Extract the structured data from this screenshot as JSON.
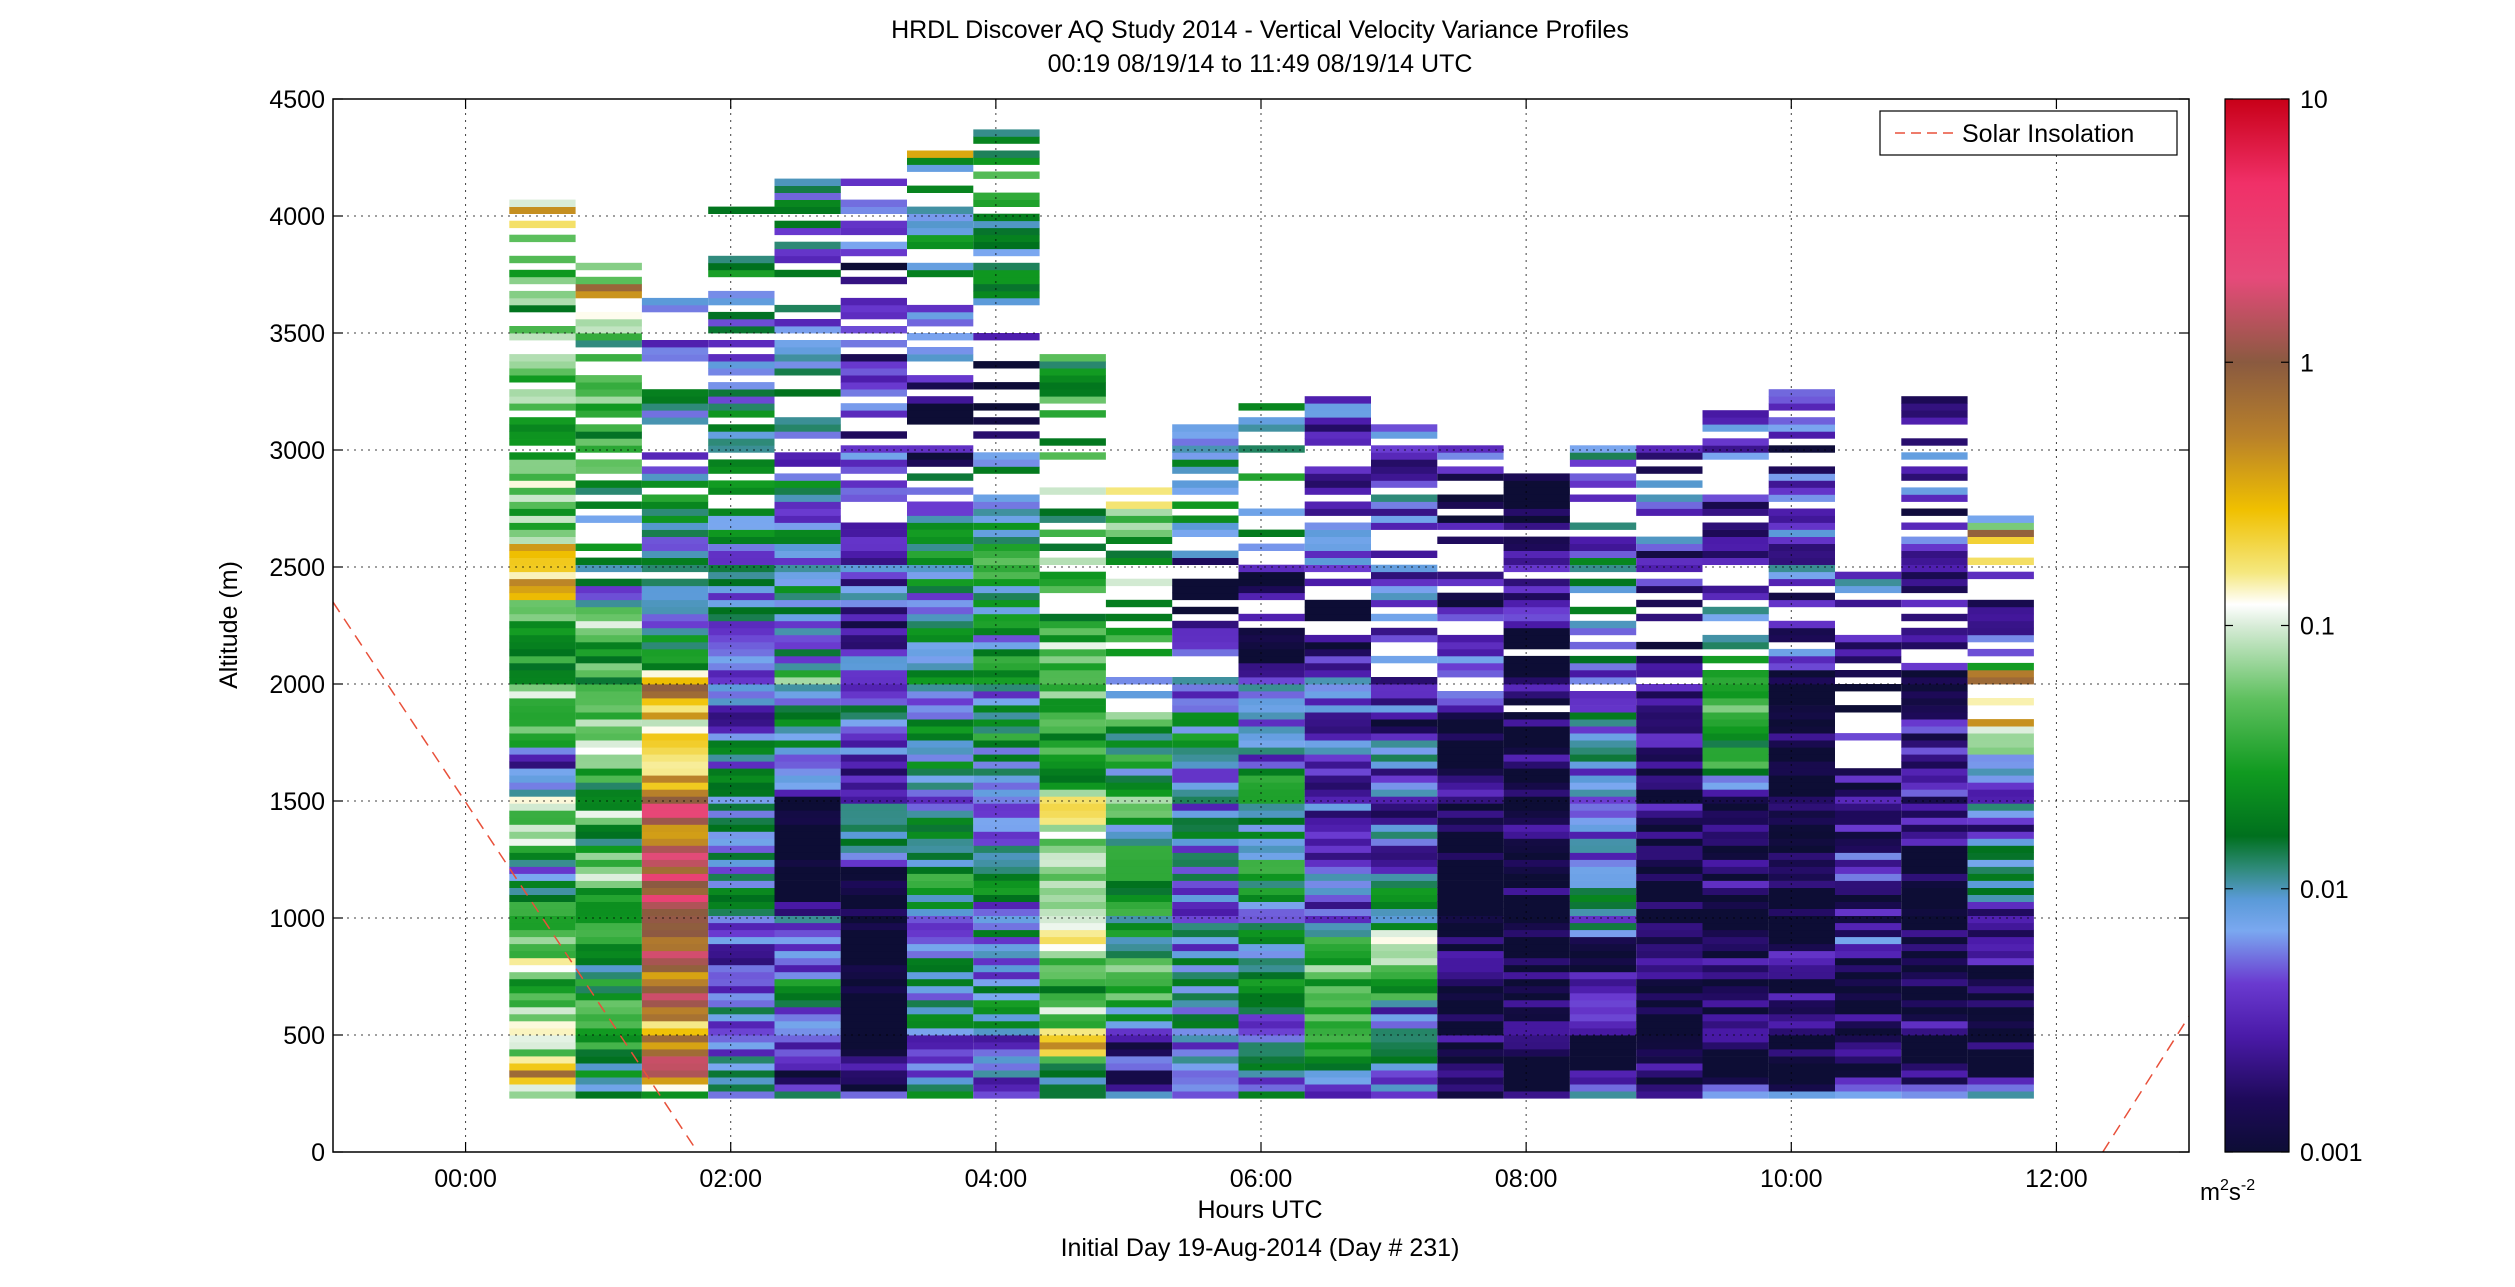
{
  "chart_data": {
    "type": "heatmap",
    "title": "HRDL Discover AQ Study 2014 - Vertical Velocity Variance Profiles",
    "subtitle": "00:19 08/19/14 to 11:49 08/19/14  UTC",
    "xlabel": "Hours UTC",
    "xlabel2": "Initial Day 19-Aug-2014 (Day # 231)",
    "ylabel": "Altitude (m)",
    "xlim": [
      -1.0,
      13.0
    ],
    "ylim": [
      0,
      4500
    ],
    "x_ticks": [
      0,
      2,
      4,
      6,
      8,
      10,
      12
    ],
    "x_tick_labels": [
      "00:00",
      "02:00",
      "04:00",
      "06:00",
      "08:00",
      "10:00",
      "12:00"
    ],
    "y_ticks": [
      0,
      500,
      1000,
      1500,
      2000,
      2500,
      3000,
      3500,
      4000,
      4500
    ],
    "y_tick_labels": [
      "0",
      "500",
      "1000",
      "1500",
      "2000",
      "2500",
      "3000",
      "3500",
      "4000",
      "4500"
    ],
    "grid": true,
    "legend": {
      "position": "top-right",
      "entries": [
        "Solar Insolation"
      ]
    },
    "colorbar": {
      "scale": "log",
      "min": 0.001,
      "max": 10,
      "ticks": [
        0.001,
        0.01,
        0.1,
        1,
        10
      ],
      "tick_labels": [
        "0.001",
        "0.01",
        "0.1",
        "1",
        "10"
      ],
      "units_base": "m",
      "units_exp1": "2",
      "units_mid": "s",
      "units_exp2": "-2",
      "colors": [
        [
          0.0,
          "#0d0d35"
        ],
        [
          0.05,
          "#1e0a5a"
        ],
        [
          0.11,
          "#4a1aa8"
        ],
        [
          0.16,
          "#6a3ad0"
        ],
        [
          0.21,
          "#7aa8f0"
        ],
        [
          0.24,
          "#5a9ad8"
        ],
        [
          0.27,
          "#2e8a78"
        ],
        [
          0.3,
          "#00701e"
        ],
        [
          0.36,
          "#109a20"
        ],
        [
          0.43,
          "#5ec05e"
        ],
        [
          0.5,
          "#d8ecd8"
        ],
        [
          0.52,
          "#ffffff"
        ],
        [
          0.55,
          "#f5e880"
        ],
        [
          0.61,
          "#f0c000"
        ],
        [
          0.68,
          "#b8802a"
        ],
        [
          0.75,
          "#8a5a40"
        ],
        [
          0.83,
          "#e64a7a"
        ],
        [
          0.92,
          "#f03068"
        ],
        [
          1.0,
          "#c80018"
        ]
      ]
    },
    "solar_insolation": {
      "style": "dashed",
      "color": "#e8503a",
      "segments": [
        {
          "x": [
            -1.0,
            1.75
          ],
          "y": [
            2350,
            0
          ]
        },
        {
          "x": [
            12.35,
            13.0
          ],
          "y": [
            0,
            580
          ]
        }
      ]
    },
    "profiles": [
      {
        "time": 0.58,
        "base": 230,
        "top": 4070,
        "median": 0.05,
        "features": [
          [
            250,
            350,
            0.3
          ],
          [
            1000,
            1200,
            0.01
          ],
          [
            1500,
            1700,
            0.003
          ],
          [
            2350,
            2600,
            0.3
          ],
          [
            3950,
            4020,
            1.0
          ]
        ]
      },
      {
        "time": 1.08,
        "base": 230,
        "top": 3810,
        "median": 0.03,
        "features": [
          [
            250,
            400,
            0.01
          ],
          [
            2300,
            2700,
            0.01
          ],
          [
            3600,
            3700,
            0.3
          ]
        ]
      },
      {
        "time": 1.58,
        "base": 230,
        "top": 3780,
        "median": 0.01,
        "features": [
          [
            250,
            650,
            0.6
          ],
          [
            650,
            900,
            1.3
          ],
          [
            900,
            1050,
            4.0
          ],
          [
            1050,
            1500,
            1.3
          ],
          [
            1500,
            2050,
            0.35
          ],
          [
            3250,
            3500,
            0.002
          ]
        ]
      },
      {
        "time": 2.08,
        "base": 230,
        "top": 4070,
        "median": 0.008,
        "features": [
          [
            250,
            900,
            0.005
          ],
          [
            1600,
            2200,
            0.006
          ]
        ]
      },
      {
        "time": 2.58,
        "base": 230,
        "top": 4200,
        "median": 0.01,
        "features": [
          [
            250,
            600,
            0.002
          ],
          [
            1000,
            1500,
            0.001
          ],
          [
            1950,
            2050,
            0.08
          ]
        ]
      },
      {
        "time": 3.08,
        "base": 230,
        "top": 4180,
        "median": 0.003,
        "features": [
          [
            250,
            1200,
            0.001
          ],
          [
            1300,
            2000,
            0.004
          ]
        ]
      },
      {
        "time": 3.58,
        "base": 230,
        "top": 4300,
        "median": 0.01,
        "features": [
          [
            1800,
            2500,
            0.01
          ],
          [
            2900,
            3300,
            0.002
          ],
          [
            4250,
            4300,
            1.0
          ]
        ]
      },
      {
        "time": 4.08,
        "base": 230,
        "top": 4380,
        "median": 0.012,
        "features": [
          [
            900,
            2500,
            0.012
          ],
          [
            3000,
            3600,
            0.001
          ]
        ]
      },
      {
        "time": 4.58,
        "base": 230,
        "top": 3440,
        "median": 0.04,
        "features": [
          [
            250,
            400,
            0.03
          ],
          [
            380,
            460,
            0.3
          ],
          [
            1000,
            1700,
            0.07
          ],
          [
            3400,
            3450,
            0.3
          ]
        ]
      },
      {
        "time": 5.08,
        "base": 230,
        "top": 2850,
        "median": 0.02,
        "features": [
          [
            250,
            550,
            0.003
          ],
          [
            2250,
            2800,
            0.06
          ]
        ]
      },
      {
        "time": 5.58,
        "base": 230,
        "top": 3100,
        "median": 0.008,
        "features": [
          [
            1500,
            2000,
            0.01
          ],
          [
            2200,
            2500,
            0.001
          ]
        ]
      },
      {
        "time": 6.08,
        "base": 230,
        "top": 3230,
        "median": 0.01,
        "features": [
          [
            1000,
            1600,
            0.012
          ],
          [
            2000,
            2500,
            0.002
          ]
        ]
      },
      {
        "time": 6.58,
        "base": 230,
        "top": 3230,
        "median": 0.006,
        "features": [
          [
            400,
            900,
            0.03
          ],
          [
            2100,
            2500,
            0.001
          ]
        ]
      },
      {
        "time": 7.08,
        "base": 230,
        "top": 3120,
        "median": 0.005,
        "features": [
          [
            600,
            1100,
            0.03
          ],
          [
            1800,
            2100,
            0.003
          ]
        ]
      },
      {
        "time": 7.58,
        "base": 230,
        "top": 3020,
        "median": 0.002,
        "features": [
          [
            250,
            450,
            0.003
          ],
          [
            500,
            1800,
            0.001
          ]
        ]
      },
      {
        "time": 8.08,
        "base": 230,
        "top": 2880,
        "median": 0.002,
        "features": [
          [
            250,
            2200,
            0.001
          ]
        ]
      },
      {
        "time": 8.58,
        "base": 230,
        "top": 3020,
        "median": 0.006,
        "features": [
          [
            250,
            900,
            0.001
          ],
          [
            500,
            700,
            0.01
          ]
        ]
      },
      {
        "time": 9.08,
        "base": 230,
        "top": 3070,
        "median": 0.003,
        "features": [
          [
            250,
            1600,
            0.001
          ]
        ]
      },
      {
        "time": 9.58,
        "base": 230,
        "top": 3170,
        "median": 0.006,
        "features": [
          [
            250,
            1500,
            0.001
          ],
          [
            1500,
            2100,
            0.02
          ]
        ]
      },
      {
        "time": 10.08,
        "base": 230,
        "top": 3290,
        "median": 0.003,
        "features": [
          [
            250,
            2000,
            0.001
          ]
        ]
      },
      {
        "time": 10.58,
        "base": 230,
        "top": 2500,
        "median": 0.003,
        "features": [
          [
            250,
            800,
            0.001
          ],
          [
            1800,
            2100,
            0.001
          ]
        ]
      },
      {
        "time": 11.08,
        "base": 230,
        "top": 3220,
        "median": 0.003,
        "features": [
          [
            250,
            1300,
            0.001
          ]
        ]
      },
      {
        "time": 11.58,
        "base": 230,
        "top": 2770,
        "median": 0.005,
        "features": [
          [
            250,
            800,
            0.001
          ],
          [
            1700,
            2050,
            0.3
          ],
          [
            2500,
            2650,
            0.5
          ]
        ]
      }
    ]
  }
}
